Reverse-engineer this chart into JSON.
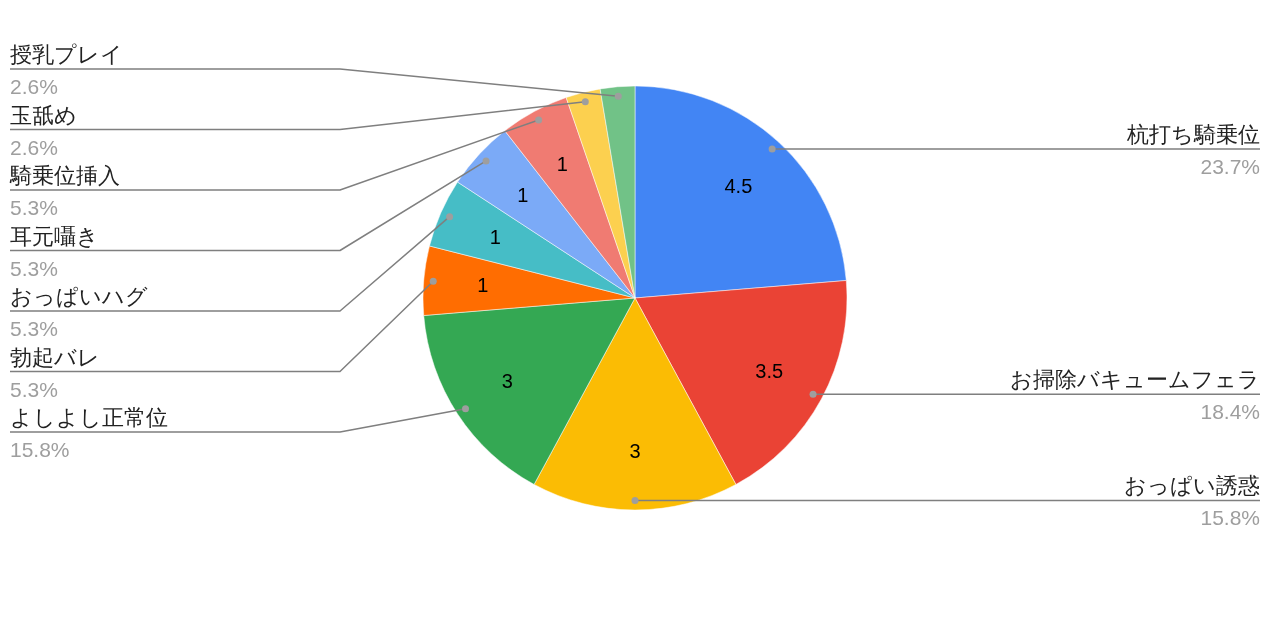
{
  "chart_data": {
    "type": "pie",
    "categories": [
      "杭打ち騎乗位",
      "お掃除バキュームフェラ",
      "おっぱい誘惑",
      "よしよし正常位",
      "勃起バレ",
      "おっぱいハグ",
      "耳元囁き",
      "騎乗位挿入",
      "玉舐め",
      "授乳プレイ"
    ],
    "values": [
      4.5,
      3.5,
      3,
      3,
      1,
      1,
      1,
      1,
      0.5,
      0.5
    ],
    "colors": [
      "#4285f4",
      "#ea4335",
      "#fbbc04",
      "#34a853",
      "#ff6d01",
      "#46bdc6",
      "#7baaf7",
      "#f07b72",
      "#fcd04f",
      "#71c287"
    ],
    "value_labels": [
      "4.5",
      "3.5",
      "3",
      "3",
      "1",
      "1",
      "1",
      "1",
      null,
      null
    ],
    "annotations": [
      {
        "text": "23.7%",
        "x": "杭打ち騎乗位"
      },
      {
        "text": "18.4%",
        "x": "お掃除バキュームフェラ"
      },
      {
        "text": "15.8%",
        "x": "おっぱい誘惑"
      },
      {
        "text": "15.8%",
        "x": "よしよし正常位"
      },
      {
        "text": "5.3%",
        "x": "勃起バレ"
      },
      {
        "text": "5.3%",
        "x": "おっぱいハグ"
      },
      {
        "text": "5.3%",
        "x": "耳元囁き"
      },
      {
        "text": "5.3%",
        "x": "騎乗位挿入"
      },
      {
        "text": "2.6%",
        "x": "玉舐め"
      },
      {
        "text": "2.6%",
        "x": "授乳プレイ"
      }
    ]
  }
}
